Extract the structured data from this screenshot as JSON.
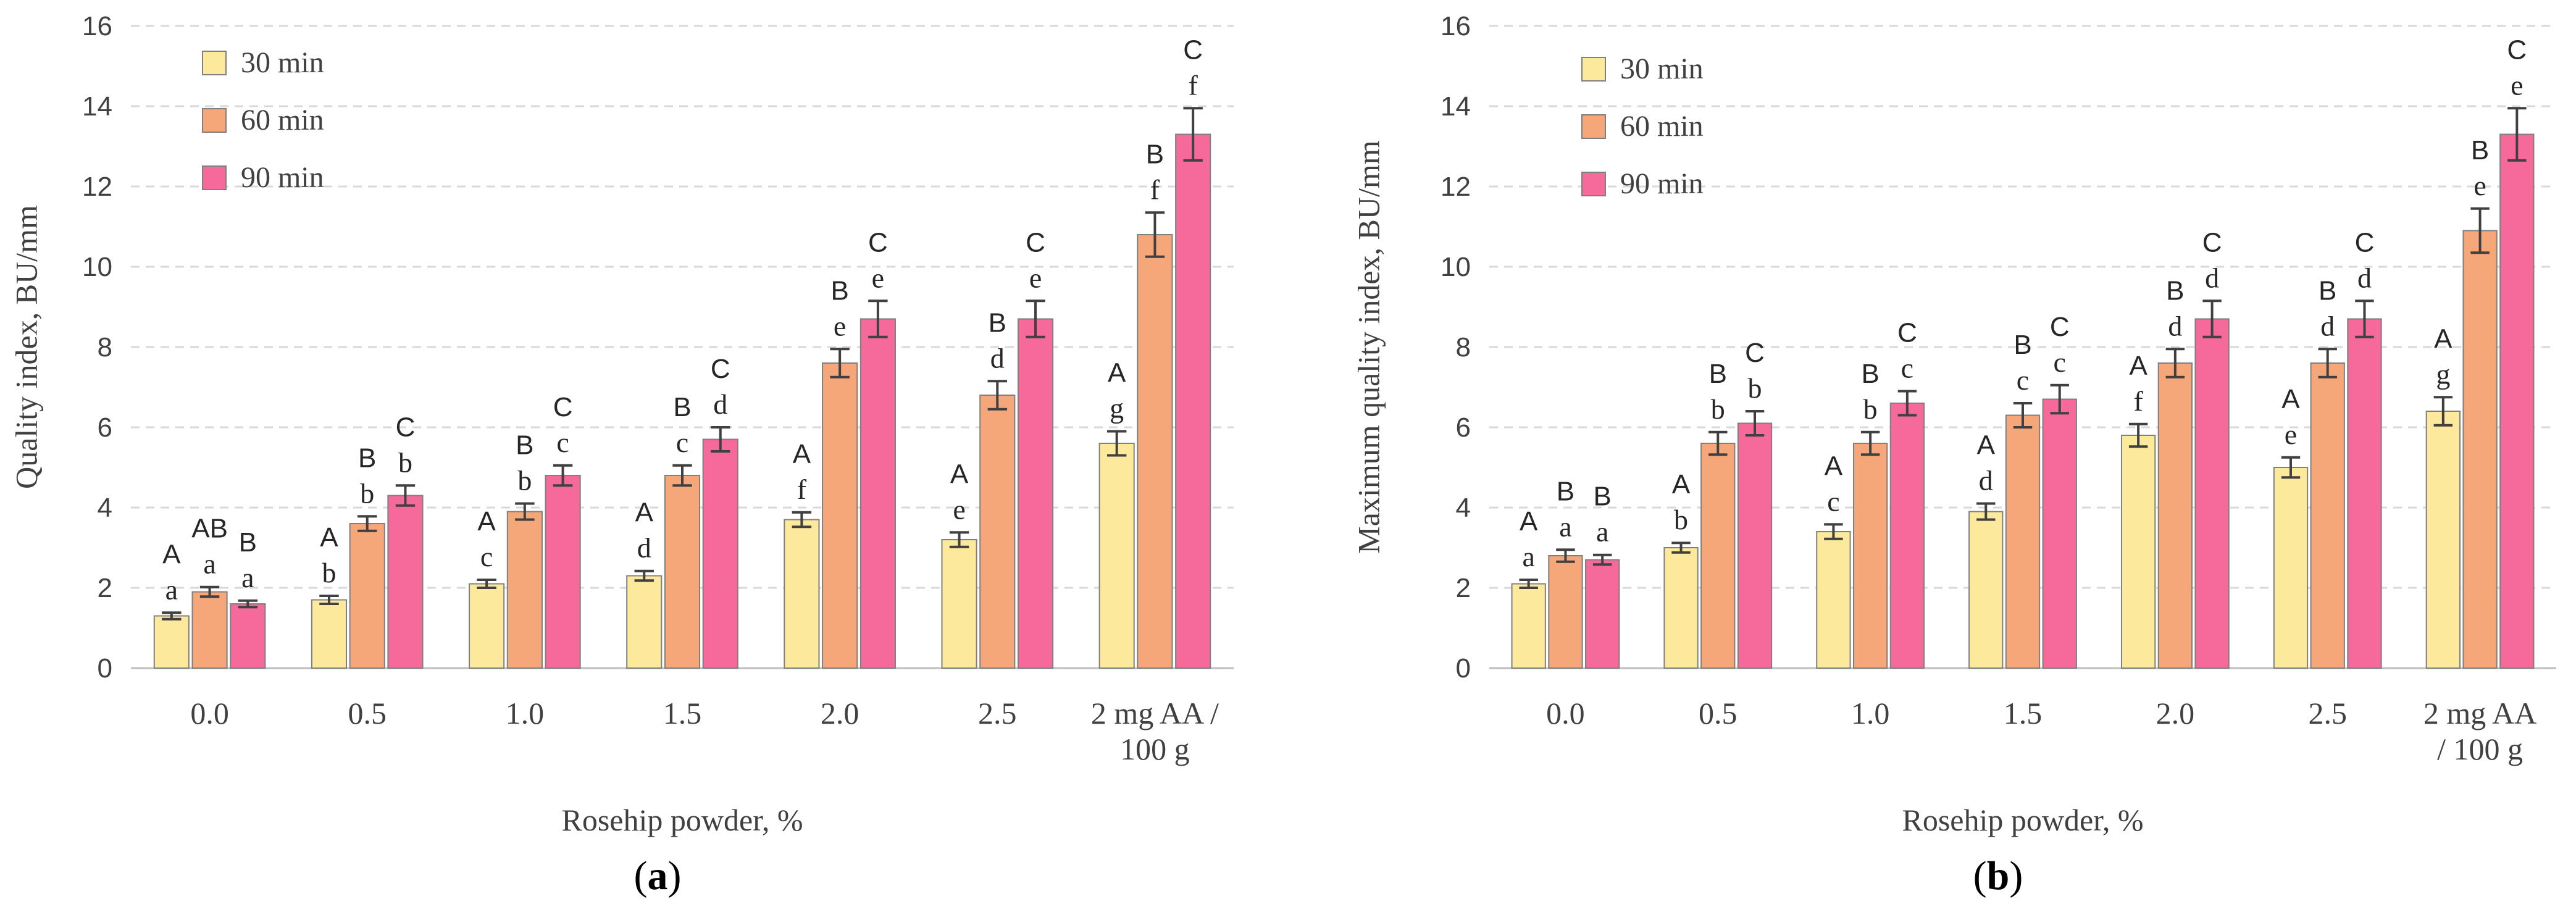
{
  "colors": {
    "30 min": "#fde99b",
    "60 min": "#f6a77a",
    "90 min": "#f5699b"
  },
  "chart_data": [
    {
      "type": "bar",
      "panel_label": "a",
      "ylabel": "Quality index, BU/mm",
      "xlabel": "Rosehip powder, %",
      "ylim": [
        0,
        16
      ],
      "yticks": [
        0,
        2,
        4,
        6,
        8,
        10,
        12,
        14,
        16
      ],
      "categories": [
        "0.0",
        "0.5",
        "1.0",
        "1.5",
        "2.0",
        "2.5",
        "2 mg AA / 100 g"
      ],
      "category_lines": [
        [
          "0.0"
        ],
        [
          "0.5"
        ],
        [
          "1.0"
        ],
        [
          "1.5"
        ],
        [
          "2.0"
        ],
        [
          "2.5"
        ],
        [
          "2 mg AA /",
          "100 g"
        ]
      ],
      "legend": [
        "30 min",
        "60 min",
        "90 min"
      ],
      "grid": true,
      "series": [
        {
          "name": "30 min",
          "values": [
            1.3,
            1.7,
            2.1,
            2.3,
            3.7,
            3.2,
            5.6
          ],
          "errors": [
            0.08,
            0.1,
            0.1,
            0.12,
            0.18,
            0.18,
            0.3
          ],
          "upper": [
            "A",
            "A",
            "A",
            "A",
            "A",
            "A",
            "A"
          ],
          "lower": [
            "a",
            "b",
            "c",
            "d",
            "f",
            "e",
            "g"
          ]
        },
        {
          "name": "60 min",
          "values": [
            1.9,
            3.6,
            3.9,
            4.8,
            7.6,
            6.8,
            10.8
          ],
          "errors": [
            0.12,
            0.18,
            0.2,
            0.25,
            0.35,
            0.35,
            0.55
          ],
          "upper": [
            "AB",
            "B",
            "B",
            "B",
            "B",
            "B",
            "B"
          ],
          "lower": [
            "a",
            "b",
            "b",
            "c",
            "e",
            "d",
            "f"
          ]
        },
        {
          "name": "90 min",
          "values": [
            1.6,
            4.3,
            4.8,
            5.7,
            8.7,
            8.7,
            13.3
          ],
          "errors": [
            0.08,
            0.25,
            0.25,
            0.3,
            0.45,
            0.45,
            0.65
          ],
          "upper": [
            "B",
            "C",
            "C",
            "C",
            "C",
            "C",
            "C"
          ],
          "lower": [
            "a",
            "b",
            "c",
            "d",
            "e",
            "e",
            "f"
          ]
        }
      ]
    },
    {
      "type": "bar",
      "panel_label": "b",
      "ylabel": "Maximum quality index, BU/mm",
      "xlabel": "Rosehip powder, %",
      "ylim": [
        0,
        16
      ],
      "yticks": [
        0,
        2,
        4,
        6,
        8,
        10,
        12,
        14,
        16
      ],
      "categories": [
        "0.0",
        "0.5",
        "1.0",
        "1.5",
        "2.0",
        "2.5",
        "2 mg AA / 100 g"
      ],
      "category_lines": [
        [
          "0.0"
        ],
        [
          "0.5"
        ],
        [
          "1.0"
        ],
        [
          "1.5"
        ],
        [
          "2.0"
        ],
        [
          "2.5"
        ],
        [
          "2 mg AA",
          "/ 100 g"
        ]
      ],
      "legend": [
        "30 min",
        "60 min",
        "90 min"
      ],
      "grid": true,
      "series": [
        {
          "name": "30 min",
          "values": [
            2.1,
            3.0,
            3.4,
            3.9,
            5.8,
            5.0,
            6.4
          ],
          "errors": [
            0.1,
            0.12,
            0.18,
            0.2,
            0.28,
            0.25,
            0.35
          ],
          "upper": [
            "A",
            "A",
            "A",
            "A",
            "A",
            "A",
            "A"
          ],
          "lower": [
            "a",
            "b",
            "c",
            "d",
            "f",
            "e",
            "g"
          ]
        },
        {
          "name": "60 min",
          "values": [
            2.8,
            5.6,
            5.6,
            6.3,
            7.6,
            7.6,
            10.9
          ],
          "errors": [
            0.15,
            0.28,
            0.28,
            0.3,
            0.35,
            0.35,
            0.55
          ],
          "upper": [
            "B",
            "B",
            "B",
            "B",
            "B",
            "B",
            "B"
          ],
          "lower": [
            "a",
            "b",
            "b",
            "c",
            "d",
            "d",
            "e"
          ]
        },
        {
          "name": "90 min",
          "values": [
            2.7,
            6.1,
            6.6,
            6.7,
            8.7,
            8.7,
            13.3
          ],
          "errors": [
            0.12,
            0.3,
            0.3,
            0.35,
            0.45,
            0.45,
            0.65
          ],
          "upper": [
            "B",
            "C",
            "C",
            "C",
            "C",
            "C",
            "C"
          ],
          "lower": [
            "a",
            "b",
            "c",
            "c",
            "d",
            "d",
            "e"
          ]
        }
      ]
    }
  ]
}
